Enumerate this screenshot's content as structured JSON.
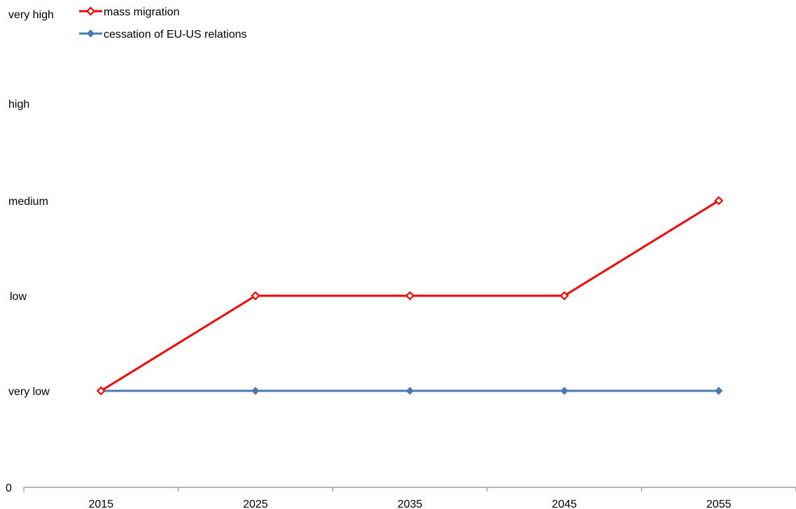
{
  "chart_data": {
    "type": "line",
    "x": [
      2015,
      2025,
      2035,
      2045,
      2055
    ],
    "y_levels": [
      {
        "value": 0,
        "label": "0"
      },
      {
        "value": 1,
        "label": "very low"
      },
      {
        "value": 2,
        "label": "low"
      },
      {
        "value": 3,
        "label": "medium"
      },
      {
        "value": 4,
        "label": "high"
      },
      {
        "value": 5,
        "label": "very high"
      }
    ],
    "ylim": [
      0,
      5
    ],
    "xlim": [
      2010,
      2060
    ],
    "grid": false,
    "legend_position": "top-left",
    "series": [
      {
        "name": "mass migration",
        "color": "#ff0000",
        "marker": "diamond-open",
        "values": [
          1,
          2,
          2,
          2,
          3
        ]
      },
      {
        "name": "cessation of EU-US relations",
        "color": "#4a78b2",
        "marker": "diamond-filled",
        "values": [
          1,
          1,
          1,
          1,
          1
        ]
      }
    ]
  }
}
